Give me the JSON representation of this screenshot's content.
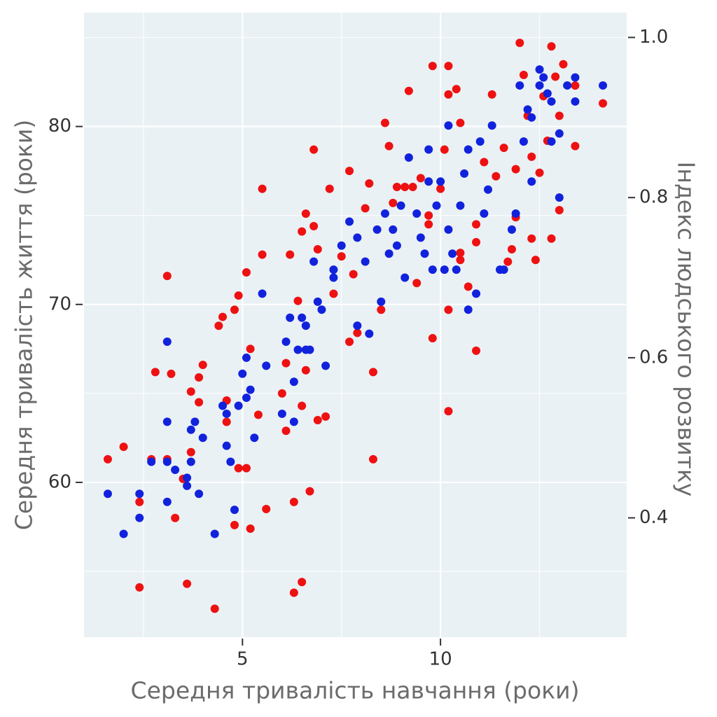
{
  "chart_data": {
    "type": "scatter",
    "xlabel": "Середня тривалість навчання (роки)",
    "ylabel": "Середня тривалість життя (роки)",
    "y2label": "Індекс людського розвитку",
    "xlim": [
      1.0,
      14.7
    ],
    "xticks": [
      5,
      10
    ],
    "ylim": [
      51.3,
      86.4
    ],
    "yticks": [
      60,
      70,
      80
    ],
    "y2lim": [
      0.251,
      1.031
    ],
    "y2ticks": [
      0.4,
      0.6,
      0.8,
      {
        "value": 1,
        "label": "1.0"
      }
    ],
    "grid": true,
    "series": [
      {
        "color": "#ee1111",
        "axis": "y",
        "x": [
          1.6,
          2.0,
          2.4,
          2.4,
          2.7,
          2.8,
          3.1,
          3.1,
          3.2,
          3.3,
          3.5,
          3.6,
          3.7,
          3.7,
          3.9,
          4.0,
          3.9,
          4.3,
          4.4,
          4.5,
          4.6,
          4.6,
          4.8,
          4.8,
          4.9,
          4.9,
          5.1,
          5.1,
          5.2,
          5.2,
          5.4,
          5.5,
          5.5,
          5.6,
          6.0,
          6.1,
          6.1,
          6.2,
          6.3,
          6.3,
          6.4,
          6.5,
          6.5,
          6.5,
          6.6,
          6.6,
          6.7,
          6.8,
          6.8,
          6.9,
          6.9,
          7.1,
          7.2,
          7.3,
          7.5,
          7.7,
          7.7,
          7.8,
          7.9,
          8.1,
          8.2,
          8.3,
          8.3,
          8.5,
          8.6,
          8.7,
          8.8,
          8.9,
          9.1,
          9.2,
          9.3,
          9.4,
          9.5,
          9.7,
          9.7,
          9.8,
          9.8,
          10.0,
          10.1,
          10.2,
          10.2,
          10.2,
          10.2,
          10.4,
          10.5,
          10.5,
          10.5,
          10.7,
          10.9,
          10.9,
          10.9,
          11.1,
          11.3,
          11.4,
          11.6,
          11.8,
          11.9,
          11.9,
          12.0,
          12.1,
          12.3,
          12.3,
          12.4,
          12.6,
          12.7,
          12.8,
          12.8,
          12.9,
          13.0,
          13.1,
          13.4,
          13.4,
          14.1,
          12.5,
          13.0,
          12.2,
          11.7
        ],
        "values": [
          61.3,
          62.0,
          54.1,
          58.9,
          61.3,
          66.2,
          71.6,
          61.3,
          66.1,
          58.0,
          60.2,
          54.3,
          65.1,
          61.7,
          65.9,
          66.6,
          64.5,
          52.9,
          68.8,
          69.3,
          64.6,
          63.4,
          69.7,
          57.6,
          70.5,
          60.8,
          60.8,
          71.8,
          67.5,
          57.4,
          63.8,
          76.5,
          72.8,
          58.5,
          65.0,
          62.9,
          66.7,
          72.8,
          53.8,
          58.9,
          70.2,
          54.4,
          74.1,
          64.3,
          75.1,
          66.3,
          59.5,
          74.4,
          78.7,
          73.1,
          63.5,
          63.7,
          76.5,
          70.6,
          72.7,
          67.9,
          77.5,
          71.7,
          68.4,
          75.4,
          76.8,
          66.2,
          61.3,
          69.7,
          80.2,
          78.9,
          75.7,
          76.6,
          76.6,
          82.0,
          76.6,
          71.2,
          77.1,
          75.0,
          74.5,
          68.1,
          83.4,
          76.5,
          78.7,
          83.4,
          81.8,
          64.0,
          69.7,
          82.1,
          72.5,
          72.9,
          80.2,
          71.0,
          67.4,
          74.5,
          73.5,
          78.0,
          81.8,
          77.2,
          78.8,
          73.1,
          74.9,
          77.6,
          84.7,
          82.9,
          78.3,
          73.7,
          72.5,
          81.7,
          79.2,
          84.5,
          73.7,
          82.8,
          75.3,
          83.5,
          82.3,
          78.9,
          81.3,
          77.4,
          80.6,
          80.6,
          72.4
        ]
      },
      {
        "color": "#1122dd",
        "axis": "y2",
        "x": [
          1.6,
          2.0,
          2.4,
          2.4,
          2.7,
          3.1,
          3.1,
          3.1,
          3.1,
          3.3,
          3.6,
          3.6,
          3.7,
          3.7,
          3.8,
          3.9,
          4.0,
          4.3,
          4.5,
          4.6,
          4.6,
          4.7,
          4.8,
          4.9,
          5.0,
          5.1,
          5.1,
          5.2,
          5.3,
          5.5,
          5.6,
          6.0,
          6.1,
          6.2,
          6.3,
          6.3,
          6.4,
          6.5,
          6.6,
          6.6,
          6.7,
          6.8,
          6.9,
          7.0,
          7.1,
          7.3,
          7.3,
          7.5,
          7.7,
          7.9,
          7.9,
          8.1,
          8.2,
          8.4,
          8.5,
          8.6,
          8.7,
          8.8,
          8.9,
          9.0,
          9.1,
          9.2,
          9.4,
          9.5,
          9.6,
          9.7,
          9.7,
          9.8,
          9.9,
          10.0,
          10.1,
          10.2,
          10.2,
          10.3,
          10.4,
          10.5,
          10.6,
          10.7,
          10.7,
          10.9,
          11.0,
          11.1,
          11.2,
          11.3,
          11.5,
          11.6,
          11.8,
          11.9,
          12.0,
          12.1,
          12.3,
          12.3,
          12.5,
          12.5,
          12.6,
          12.7,
          12.8,
          12.8,
          13.0,
          13.2,
          13.4,
          14.1,
          13.0,
          13.4,
          12.2
        ],
        "values": [
          0.43,
          0.38,
          0.43,
          0.4,
          0.47,
          0.47,
          0.42,
          0.62,
          0.52,
          0.46,
          0.45,
          0.44,
          0.51,
          0.47,
          0.52,
          0.43,
          0.5,
          0.38,
          0.54,
          0.53,
          0.49,
          0.47,
          0.41,
          0.54,
          0.58,
          0.55,
          0.6,
          0.56,
          0.5,
          0.68,
          0.59,
          0.53,
          0.62,
          0.65,
          0.57,
          0.52,
          0.61,
          0.65,
          0.61,
          0.64,
          0.61,
          0.72,
          0.67,
          0.66,
          0.59,
          0.7,
          0.71,
          0.74,
          0.77,
          0.75,
          0.64,
          0.72,
          0.63,
          0.76,
          0.67,
          0.78,
          0.73,
          0.76,
          0.74,
          0.79,
          0.7,
          0.85,
          0.78,
          0.75,
          0.73,
          0.86,
          0.82,
          0.71,
          0.79,
          0.82,
          0.71,
          0.89,
          0.76,
          0.73,
          0.71,
          0.79,
          0.83,
          0.66,
          0.86,
          0.68,
          0.87,
          0.78,
          0.81,
          0.89,
          0.71,
          0.71,
          0.76,
          0.78,
          0.94,
          0.87,
          0.9,
          0.82,
          0.94,
          0.96,
          0.95,
          0.93,
          0.87,
          0.92,
          0.8,
          0.94,
          0.92,
          0.94,
          0.88,
          0.95,
          0.91
        ]
      }
    ]
  }
}
